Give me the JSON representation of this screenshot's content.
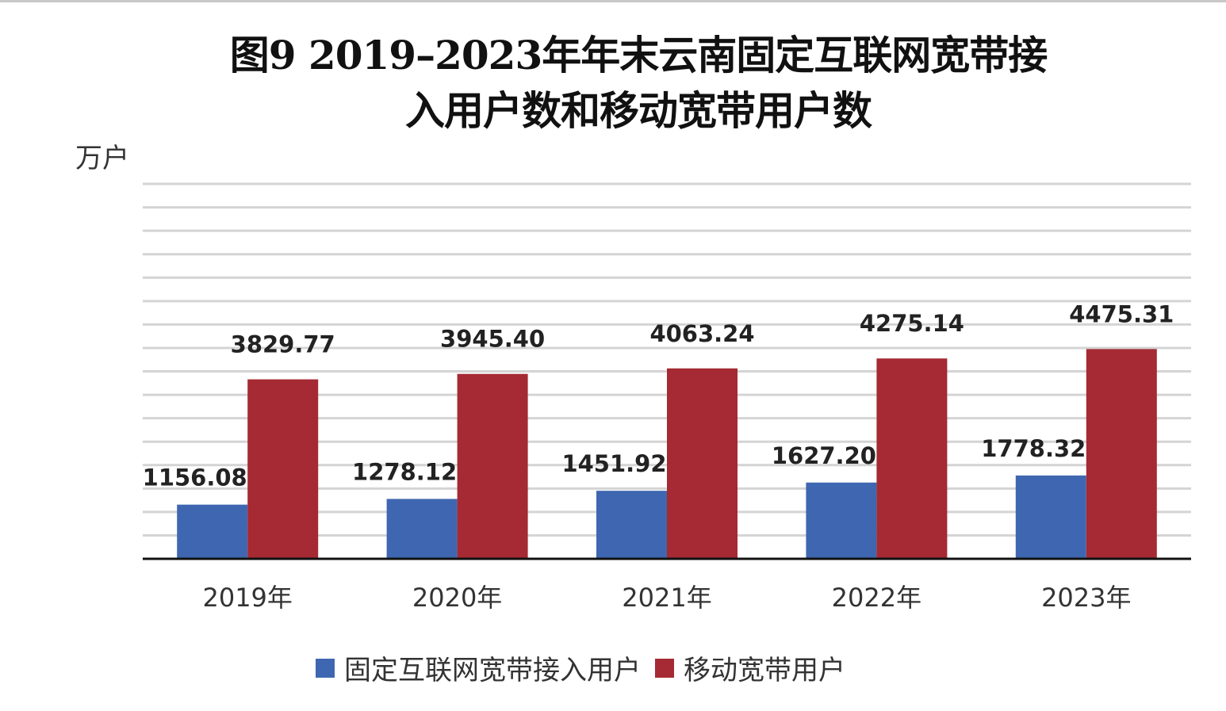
{
  "chart_data": {
    "type": "bar",
    "title": [
      "图9 2019–2023年年末云南固定互联网宽带接",
      "入用户数和移动宽带用户数"
    ],
    "ylabel": "万户",
    "xlabel": "",
    "categories": [
      "2019年",
      "2020年",
      "2021年",
      "2022年",
      "2023年"
    ],
    "series": [
      {
        "name": "固定互联网宽带接入用户",
        "color": "#3f67b1",
        "values": [
          1156.08,
          1278.12,
          1451.92,
          1627.2,
          1778.32
        ],
        "labels": [
          "1156.08",
          "1278.12",
          "1451.92",
          "1627.20",
          "1778.32"
        ]
      },
      {
        "name": "移动宽带用户",
        "color": "#a52a33",
        "values": [
          3829.77,
          3945.4,
          4063.24,
          4275.14,
          4475.31
        ],
        "labels": [
          "3829.77",
          "3945.40",
          "4063.24",
          "4275.14",
          "4475.31"
        ]
      }
    ],
    "ylim": [
      0,
      8000
    ],
    "grid_step": 500,
    "grid": true,
    "legend": "bottom"
  }
}
